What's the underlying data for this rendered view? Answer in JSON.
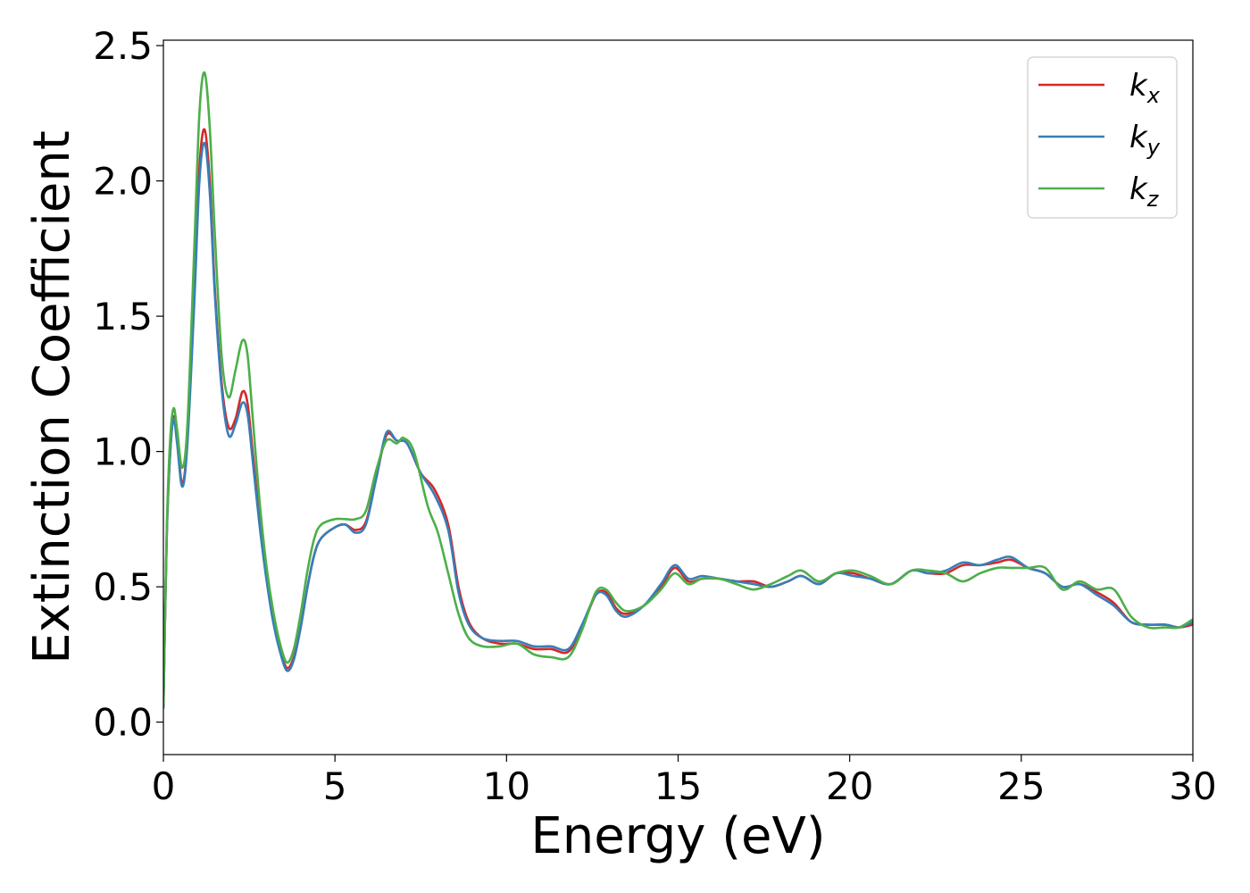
{
  "chart_data": {
    "type": "line",
    "title": "",
    "xlabel": "Energy (eV)",
    "ylabel": "Extinction Coefficient",
    "xlim": [
      0,
      30
    ],
    "ylim": [
      -0.12,
      2.52
    ],
    "xticks": [
      0,
      5,
      10,
      15,
      20,
      25,
      30
    ],
    "xtick_labels": [
      "0",
      "5",
      "10",
      "15",
      "20",
      "25",
      "30"
    ],
    "yticks": [
      0.0,
      0.5,
      1.0,
      1.5,
      2.0,
      2.5
    ],
    "ytick_labels": [
      "0.0",
      "0.5",
      "1.0",
      "1.5",
      "2.0",
      "2.5"
    ],
    "grid": false,
    "legend_position": "top-right",
    "series": [
      {
        "name": "k",
        "subscript": "x",
        "color": "#d62728",
        "points": [
          [
            0,
            0.05
          ],
          [
            0.1,
            0.7
          ],
          [
            0.2,
            1.0
          ],
          [
            0.3,
            1.13
          ],
          [
            0.4,
            1.05
          ],
          [
            0.55,
            0.88
          ],
          [
            0.7,
            1.05
          ],
          [
            0.9,
            1.6
          ],
          [
            1.05,
            2.05
          ],
          [
            1.2,
            2.19
          ],
          [
            1.35,
            2.0
          ],
          [
            1.5,
            1.6
          ],
          [
            1.7,
            1.25
          ],
          [
            1.9,
            1.09
          ],
          [
            2.1,
            1.12
          ],
          [
            2.3,
            1.22
          ],
          [
            2.45,
            1.18
          ],
          [
            2.6,
            1.0
          ],
          [
            2.8,
            0.75
          ],
          [
            3.0,
            0.55
          ],
          [
            3.2,
            0.38
          ],
          [
            3.4,
            0.27
          ],
          [
            3.6,
            0.2
          ],
          [
            3.8,
            0.24
          ],
          [
            4.0,
            0.35
          ],
          [
            4.2,
            0.5
          ],
          [
            4.4,
            0.62
          ],
          [
            4.6,
            0.68
          ],
          [
            5.0,
            0.72
          ],
          [
            5.3,
            0.73
          ],
          [
            5.6,
            0.71
          ],
          [
            5.9,
            0.74
          ],
          [
            6.2,
            0.9
          ],
          [
            6.5,
            1.06
          ],
          [
            6.8,
            1.04
          ],
          [
            7.1,
            1.03
          ],
          [
            7.5,
            0.92
          ],
          [
            7.9,
            0.86
          ],
          [
            8.3,
            0.73
          ],
          [
            8.6,
            0.5
          ],
          [
            8.9,
            0.37
          ],
          [
            9.3,
            0.31
          ],
          [
            9.8,
            0.29
          ],
          [
            10.3,
            0.29
          ],
          [
            10.8,
            0.27
          ],
          [
            11.3,
            0.27
          ],
          [
            11.8,
            0.26
          ],
          [
            12.2,
            0.35
          ],
          [
            12.6,
            0.47
          ],
          [
            12.9,
            0.48
          ],
          [
            13.2,
            0.42
          ],
          [
            13.5,
            0.4
          ],
          [
            14.0,
            0.43
          ],
          [
            14.5,
            0.5
          ],
          [
            14.9,
            0.57
          ],
          [
            15.3,
            0.52
          ],
          [
            15.7,
            0.53
          ],
          [
            16.2,
            0.53
          ],
          [
            16.7,
            0.52
          ],
          [
            17.2,
            0.52
          ],
          [
            17.7,
            0.5
          ],
          [
            18.2,
            0.52
          ],
          [
            18.6,
            0.54
          ],
          [
            19.1,
            0.51
          ],
          [
            19.6,
            0.55
          ],
          [
            20.1,
            0.55
          ],
          [
            20.6,
            0.53
          ],
          [
            21.2,
            0.51
          ],
          [
            21.8,
            0.56
          ],
          [
            22.3,
            0.55
          ],
          [
            22.8,
            0.55
          ],
          [
            23.3,
            0.58
          ],
          [
            23.8,
            0.58
          ],
          [
            24.3,
            0.59
          ],
          [
            24.7,
            0.6
          ],
          [
            25.2,
            0.57
          ],
          [
            25.7,
            0.55
          ],
          [
            26.2,
            0.5
          ],
          [
            26.7,
            0.51
          ],
          [
            27.2,
            0.48
          ],
          [
            27.7,
            0.44
          ],
          [
            28.2,
            0.37
          ],
          [
            28.7,
            0.36
          ],
          [
            29.2,
            0.36
          ],
          [
            29.6,
            0.35
          ],
          [
            30,
            0.36
          ]
        ]
      },
      {
        "name": "k",
        "subscript": "y",
        "color": "#377eb8",
        "points": [
          [
            0,
            0.05
          ],
          [
            0.1,
            0.7
          ],
          [
            0.2,
            1.0
          ],
          [
            0.3,
            1.12
          ],
          [
            0.4,
            1.03
          ],
          [
            0.55,
            0.87
          ],
          [
            0.7,
            1.03
          ],
          [
            0.9,
            1.55
          ],
          [
            1.05,
            2.0
          ],
          [
            1.2,
            2.14
          ],
          [
            1.35,
            1.96
          ],
          [
            1.5,
            1.58
          ],
          [
            1.7,
            1.23
          ],
          [
            1.9,
            1.06
          ],
          [
            2.1,
            1.1
          ],
          [
            2.3,
            1.18
          ],
          [
            2.45,
            1.14
          ],
          [
            2.6,
            0.97
          ],
          [
            2.8,
            0.73
          ],
          [
            3.0,
            0.53
          ],
          [
            3.2,
            0.37
          ],
          [
            3.4,
            0.26
          ],
          [
            3.6,
            0.19
          ],
          [
            3.8,
            0.23
          ],
          [
            4.0,
            0.35
          ],
          [
            4.2,
            0.5
          ],
          [
            4.4,
            0.62
          ],
          [
            4.6,
            0.68
          ],
          [
            5.0,
            0.72
          ],
          [
            5.3,
            0.73
          ],
          [
            5.6,
            0.7
          ],
          [
            5.9,
            0.73
          ],
          [
            6.2,
            0.9
          ],
          [
            6.5,
            1.07
          ],
          [
            6.8,
            1.04
          ],
          [
            7.1,
            1.03
          ],
          [
            7.5,
            0.92
          ],
          [
            7.9,
            0.84
          ],
          [
            8.3,
            0.71
          ],
          [
            8.6,
            0.48
          ],
          [
            8.9,
            0.36
          ],
          [
            9.3,
            0.31
          ],
          [
            9.8,
            0.3
          ],
          [
            10.3,
            0.3
          ],
          [
            10.8,
            0.28
          ],
          [
            11.3,
            0.28
          ],
          [
            11.8,
            0.27
          ],
          [
            12.2,
            0.36
          ],
          [
            12.6,
            0.47
          ],
          [
            12.9,
            0.47
          ],
          [
            13.2,
            0.41
          ],
          [
            13.5,
            0.39
          ],
          [
            14.0,
            0.43
          ],
          [
            14.5,
            0.51
          ],
          [
            14.9,
            0.58
          ],
          [
            15.3,
            0.53
          ],
          [
            15.7,
            0.54
          ],
          [
            16.2,
            0.53
          ],
          [
            16.7,
            0.52
          ],
          [
            17.2,
            0.51
          ],
          [
            17.7,
            0.5
          ],
          [
            18.2,
            0.52
          ],
          [
            18.6,
            0.54
          ],
          [
            19.1,
            0.51
          ],
          [
            19.6,
            0.55
          ],
          [
            20.1,
            0.54
          ],
          [
            20.6,
            0.53
          ],
          [
            21.2,
            0.51
          ],
          [
            21.8,
            0.56
          ],
          [
            22.3,
            0.55
          ],
          [
            22.8,
            0.56
          ],
          [
            23.3,
            0.59
          ],
          [
            23.8,
            0.58
          ],
          [
            24.3,
            0.6
          ],
          [
            24.7,
            0.61
          ],
          [
            25.2,
            0.57
          ],
          [
            25.7,
            0.55
          ],
          [
            26.2,
            0.5
          ],
          [
            26.7,
            0.51
          ],
          [
            27.2,
            0.47
          ],
          [
            27.7,
            0.43
          ],
          [
            28.2,
            0.37
          ],
          [
            28.7,
            0.36
          ],
          [
            29.2,
            0.36
          ],
          [
            29.6,
            0.35
          ],
          [
            30,
            0.37
          ]
        ]
      },
      {
        "name": "k",
        "subscript": "z",
        "color": "#4daf4a",
        "points": [
          [
            0,
            0.05
          ],
          [
            0.1,
            0.72
          ],
          [
            0.2,
            1.05
          ],
          [
            0.3,
            1.16
          ],
          [
            0.4,
            1.08
          ],
          [
            0.55,
            0.94
          ],
          [
            0.7,
            1.1
          ],
          [
            0.9,
            1.75
          ],
          [
            1.05,
            2.25
          ],
          [
            1.2,
            2.4
          ],
          [
            1.35,
            2.2
          ],
          [
            1.5,
            1.8
          ],
          [
            1.7,
            1.35
          ],
          [
            1.9,
            1.2
          ],
          [
            2.1,
            1.3
          ],
          [
            2.3,
            1.41
          ],
          [
            2.45,
            1.36
          ],
          [
            2.6,
            1.13
          ],
          [
            2.8,
            0.82
          ],
          [
            3.0,
            0.58
          ],
          [
            3.2,
            0.41
          ],
          [
            3.4,
            0.29
          ],
          [
            3.6,
            0.22
          ],
          [
            3.8,
            0.27
          ],
          [
            4.0,
            0.4
          ],
          [
            4.2,
            0.56
          ],
          [
            4.4,
            0.68
          ],
          [
            4.6,
            0.73
          ],
          [
            5.0,
            0.75
          ],
          [
            5.3,
            0.75
          ],
          [
            5.6,
            0.75
          ],
          [
            5.9,
            0.78
          ],
          [
            6.2,
            0.93
          ],
          [
            6.5,
            1.04
          ],
          [
            6.8,
            1.03
          ],
          [
            7.0,
            1.05
          ],
          [
            7.3,
            1.0
          ],
          [
            7.7,
            0.8
          ],
          [
            8.0,
            0.7
          ],
          [
            8.3,
            0.55
          ],
          [
            8.6,
            0.4
          ],
          [
            8.9,
            0.31
          ],
          [
            9.3,
            0.28
          ],
          [
            9.8,
            0.28
          ],
          [
            10.3,
            0.29
          ],
          [
            10.8,
            0.25
          ],
          [
            11.3,
            0.24
          ],
          [
            11.8,
            0.24
          ],
          [
            12.2,
            0.34
          ],
          [
            12.6,
            0.48
          ],
          [
            12.9,
            0.49
          ],
          [
            13.2,
            0.44
          ],
          [
            13.5,
            0.41
          ],
          [
            14.0,
            0.43
          ],
          [
            14.5,
            0.49
          ],
          [
            14.9,
            0.55
          ],
          [
            15.3,
            0.51
          ],
          [
            15.7,
            0.53
          ],
          [
            16.2,
            0.53
          ],
          [
            16.7,
            0.51
          ],
          [
            17.2,
            0.49
          ],
          [
            17.7,
            0.51
          ],
          [
            18.2,
            0.54
          ],
          [
            18.6,
            0.56
          ],
          [
            19.1,
            0.52
          ],
          [
            19.6,
            0.55
          ],
          [
            20.1,
            0.56
          ],
          [
            20.6,
            0.54
          ],
          [
            21.2,
            0.51
          ],
          [
            21.8,
            0.56
          ],
          [
            22.3,
            0.56
          ],
          [
            22.8,
            0.55
          ],
          [
            23.3,
            0.52
          ],
          [
            23.8,
            0.55
          ],
          [
            24.3,
            0.57
          ],
          [
            24.7,
            0.57
          ],
          [
            25.2,
            0.57
          ],
          [
            25.7,
            0.57
          ],
          [
            26.2,
            0.49
          ],
          [
            26.7,
            0.52
          ],
          [
            27.2,
            0.49
          ],
          [
            27.7,
            0.49
          ],
          [
            28.2,
            0.39
          ],
          [
            28.7,
            0.35
          ],
          [
            29.2,
            0.35
          ],
          [
            29.6,
            0.35
          ],
          [
            30,
            0.38
          ]
        ]
      }
    ]
  }
}
